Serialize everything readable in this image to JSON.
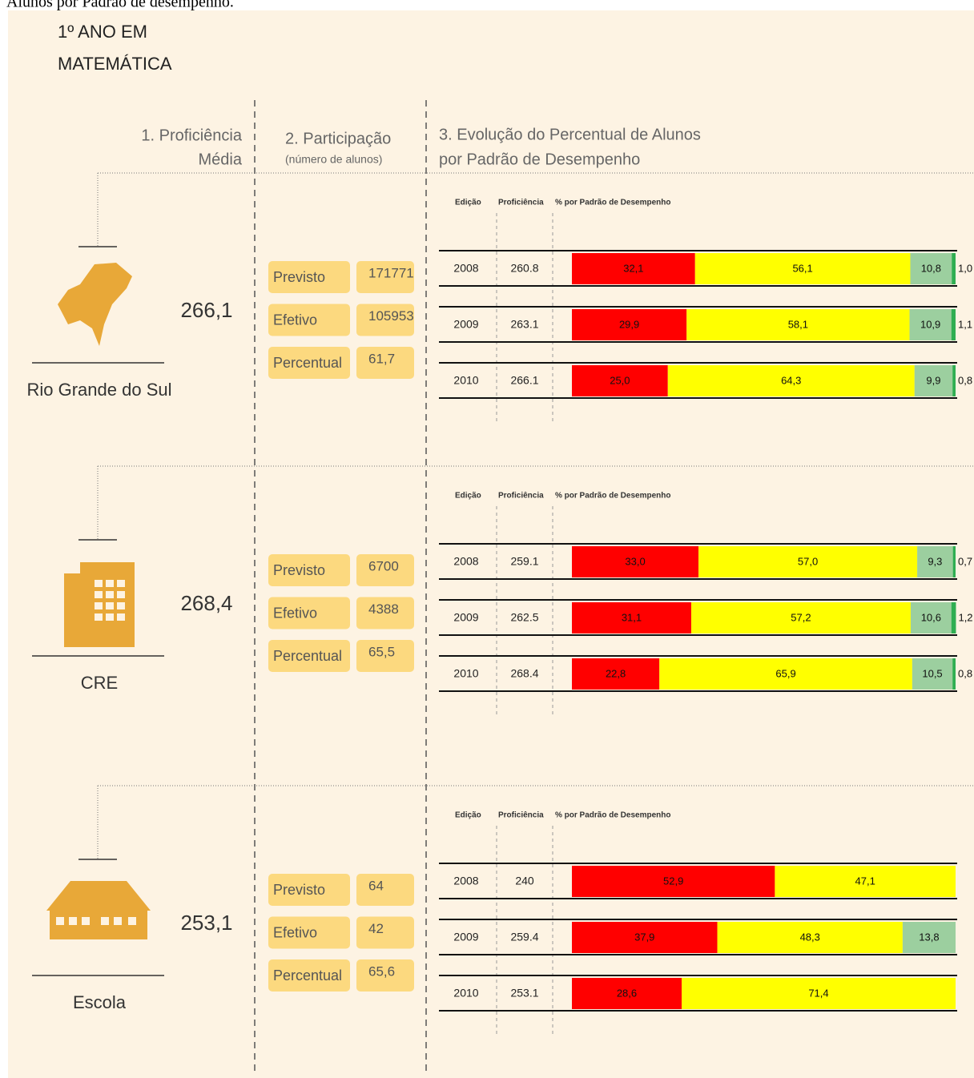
{
  "caption": "Alunos por Padrão de desempenho.",
  "header": {
    "title_lines": [
      "1º ANO EM",
      "MATEMÁTICA"
    ],
    "col1_lines": [
      "1. Proficiência",
      "Média"
    ],
    "col2_lines": [
      "2. Participação",
      "(número de alunos)"
    ],
    "col3_lines": [
      "3. Evolução do Percentual de Alunos",
      "por Padrão de Desempenho"
    ]
  },
  "colors": [
    "#ff0000",
    "#ffff00",
    "#9ccf9f",
    "#2fae52"
  ],
  "sections": [
    {
      "name": "Rio Grande do Sul",
      "proficiency": {
        "value": 266.1,
        "label": "266,1"
      },
      "participation": [
        {
          "label": "Previsto",
          "value": 171771
        },
        {
          "label": "Efetivo",
          "value": 105953
        },
        {
          "label": "Percentual",
          "value": 61.7,
          "value_label": "61,7"
        }
      ],
      "table_headers": [
        "Edição",
        "Proficiência",
        "% por Padrão de Desempenho"
      ],
      "rows": [
        {
          "edition": 2008,
          "proficiency": 260.8,
          "values": [
            32.1,
            56.1,
            10.8,
            1.0
          ],
          "value_labels": [
            "32,1",
            "56,1",
            "10,8",
            "1,0"
          ]
        },
        {
          "edition": 2009,
          "proficiency": 263.1,
          "values": [
            29.9,
            58.1,
            10.9,
            1.1
          ],
          "value_labels": [
            "29,9",
            "58,1",
            "10,9",
            "1,1"
          ]
        },
        {
          "edition": 2010,
          "proficiency": 266.1,
          "values": [
            25.0,
            64.3,
            9.9,
            0.8
          ],
          "value_labels": [
            "25,0",
            "64,3",
            "9,9",
            "0,8"
          ]
        }
      ]
    },
    {
      "name": "CRE",
      "proficiency": {
        "value": 268.4,
        "label": "268,4"
      },
      "participation": [
        {
          "label": "Previsto",
          "value": 6700
        },
        {
          "label": "Efetivo",
          "value": 4388
        },
        {
          "label": "Percentual",
          "value": 65.5,
          "value_label": "65,5"
        }
      ],
      "table_headers": [
        "Edição",
        "Proficiência",
        "% por Padrão de Desempenho"
      ],
      "rows": [
        {
          "edition": 2008,
          "proficiency": 259.1,
          "values": [
            33.0,
            57.0,
            9.3,
            0.7
          ],
          "value_labels": [
            "33,0",
            "57,0",
            "9,3",
            "0,7"
          ]
        },
        {
          "edition": 2009,
          "proficiency": 262.5,
          "values": [
            31.1,
            57.2,
            10.6,
            1.2
          ],
          "value_labels": [
            "31,1",
            "57,2",
            "10,6",
            "1,2"
          ]
        },
        {
          "edition": 2010,
          "proficiency": 268.4,
          "values": [
            22.8,
            65.9,
            10.5,
            0.8
          ],
          "value_labels": [
            "22,8",
            "65,9",
            "10,5",
            "0,8"
          ]
        }
      ]
    },
    {
      "name": "Escola",
      "proficiency": {
        "value": 253.1,
        "label": "253,1"
      },
      "participation": [
        {
          "label": "Previsto",
          "value": 64
        },
        {
          "label": "Efetivo",
          "value": 42
        },
        {
          "label": "Percentual",
          "value": 65.6,
          "value_label": "65,6"
        }
      ],
      "table_headers": [
        "Edição",
        "Proficiência",
        "% por Padrão de Desempenho"
      ],
      "rows": [
        {
          "edition": 2008,
          "proficiency": 240.0,
          "values": [
            52.9,
            47.1
          ],
          "value_labels": [
            "52,9",
            "47,1"
          ]
        },
        {
          "edition": 2009,
          "proficiency": 259.4,
          "values": [
            37.9,
            48.3,
            13.8
          ],
          "value_labels": [
            "37,9",
            "48,3",
            "13,8"
          ]
        },
        {
          "edition": 2010,
          "proficiency": 253.1,
          "values": [
            28.6,
            71.4
          ],
          "value_labels": [
            "28,6",
            "71,4"
          ]
        }
      ]
    }
  ]
}
